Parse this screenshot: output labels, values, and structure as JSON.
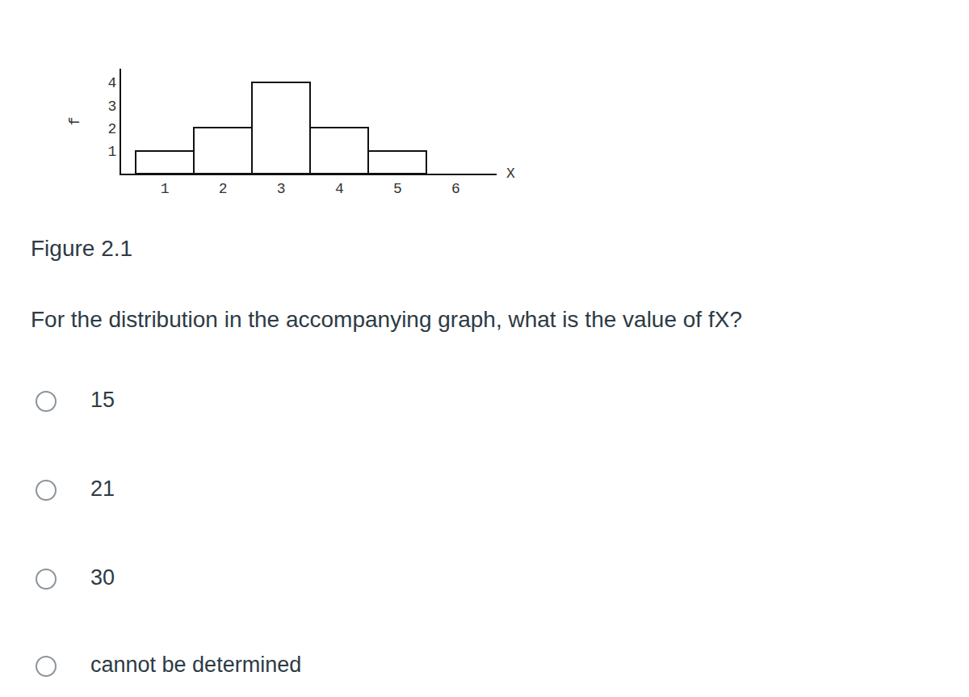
{
  "chart_data": {
    "type": "histogram",
    "bins": [
      0.5,
      1.5,
      2.5,
      3.5,
      4.5,
      5.5
    ],
    "counts": [
      1,
      2,
      4,
      2,
      1
    ],
    "x_label": "X",
    "y_label": "f",
    "xlim": [
      0.25,
      6.7
    ],
    "xticks": [
      1,
      2,
      3,
      4,
      5,
      6
    ],
    "ylim": [
      0,
      4.6
    ],
    "yticks": [
      1,
      2,
      3,
      4
    ],
    "color": "#ffffff",
    "grid": false
  },
  "caption": "Figure 2.1",
  "question": "For the distribution in the accompanying graph, what is the value of fX?",
  "options": [
    "15",
    "21",
    "30",
    "cannot be determined"
  ]
}
